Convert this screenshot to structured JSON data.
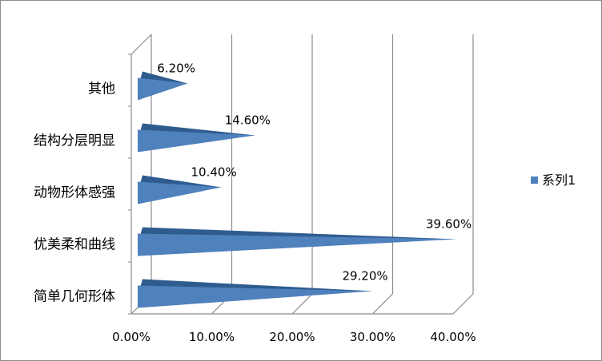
{
  "chart_data": {
    "type": "bar",
    "orientation": "horizontal",
    "style": "3d-cone",
    "categories": [
      "其他",
      "结构分层明显",
      "动物形体感强",
      "优美柔和曲线",
      "简单几何形体"
    ],
    "series": [
      {
        "name": "系列1",
        "values": [
          6.2,
          14.6,
          10.4,
          39.6,
          29.2
        ],
        "color": "#4f81bd"
      }
    ],
    "data_labels": [
      "6.20%",
      "14.60%",
      "10.40%",
      "39.60%",
      "29.20%"
    ],
    "x_ticks": [
      "0.00%",
      "10.00%",
      "20.00%",
      "30.00%",
      "40.00%"
    ],
    "xlim": [
      0,
      40
    ],
    "grid": true,
    "legend": "right"
  }
}
